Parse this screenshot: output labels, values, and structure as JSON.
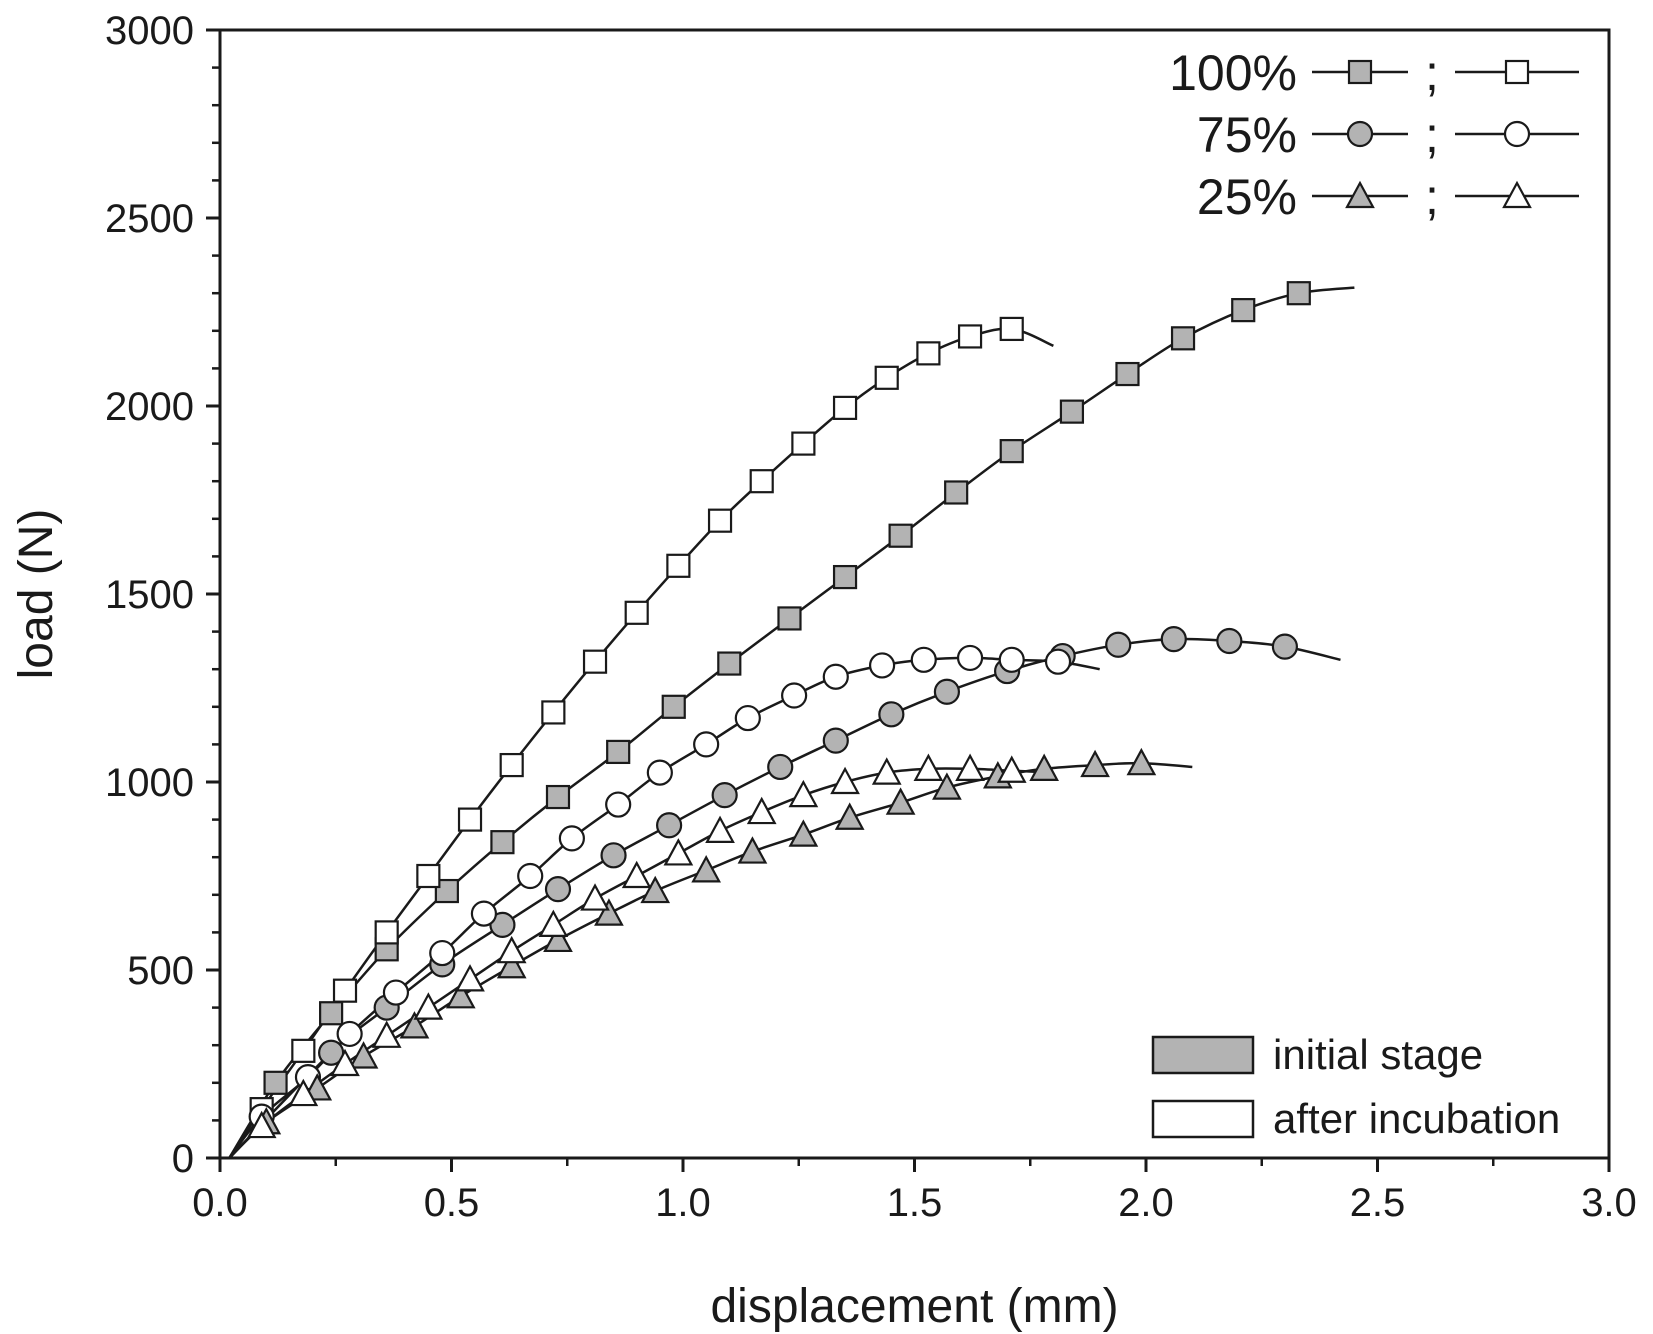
{
  "chart_data": {
    "type": "line",
    "title": "",
    "xlabel": "displacement (mm)",
    "ylabel": "load (N)",
    "xlim": [
      0.0,
      3.0
    ],
    "ylim": [
      0,
      3000
    ],
    "grid": false,
    "xticks": [
      "0.0",
      "0.5",
      "1.0",
      "1.5",
      "2.0",
      "2.5",
      "3.0"
    ],
    "xtick_values": [
      0,
      0.5,
      1.0,
      1.5,
      2.0,
      2.5,
      3.0
    ],
    "yticks": [
      "0",
      "500",
      "1000",
      "1500",
      "2000",
      "2500",
      "3000"
    ],
    "ytick_values": [
      0,
      500,
      1000,
      1500,
      2000,
      2500,
      3000
    ],
    "legend": {
      "position": "top-right",
      "entries": [
        {
          "label": "100%",
          "separator": ";",
          "marker": "square"
        },
        {
          "label": "75%",
          "separator": ";",
          "marker": "circle"
        },
        {
          "label": "25%",
          "separator": ";",
          "marker": "triangle"
        }
      ]
    },
    "fill_legend": {
      "position": "bottom-right",
      "entries": [
        {
          "label": "initial stage",
          "fill": "#b3b3b3"
        },
        {
          "label": "after incubation",
          "fill": "#ffffff"
        }
      ]
    },
    "series": [
      {
        "name": "100% initial stage",
        "marker": "square",
        "fill": "#b3b3b3",
        "x": [
          0.12,
          0.24,
          0.36,
          0.49,
          0.61,
          0.73,
          0.86,
          0.98,
          1.1,
          1.23,
          1.35,
          1.47,
          1.59,
          1.71,
          1.84,
          1.96,
          2.08,
          2.21,
          2.33
        ],
        "y": [
          200,
          385,
          555,
          710,
          840,
          960,
          1080,
          1200,
          1315,
          1435,
          1545,
          1655,
          1770,
          1880,
          1985,
          2085,
          2180,
          2255,
          2300
        ],
        "curve_end": [
          2.45,
          2315
        ]
      },
      {
        "name": "100% after incubation",
        "marker": "square",
        "fill": "#ffffff",
        "x": [
          0.09,
          0.18,
          0.27,
          0.36,
          0.45,
          0.54,
          0.63,
          0.72,
          0.81,
          0.9,
          0.99,
          1.08,
          1.17,
          1.26,
          1.35,
          1.44,
          1.53,
          1.62,
          1.71
        ],
        "y": [
          130,
          285,
          445,
          600,
          750,
          900,
          1045,
          1185,
          1320,
          1450,
          1575,
          1695,
          1800,
          1900,
          1995,
          2075,
          2140,
          2185,
          2205
        ],
        "curve_end": [
          1.8,
          2160
        ]
      },
      {
        "name": "75% initial stage",
        "marker": "circle",
        "fill": "#b3b3b3",
        "x": [
          0.24,
          0.36,
          0.48,
          0.61,
          0.73,
          0.85,
          0.97,
          1.09,
          1.21,
          1.33,
          1.45,
          1.57,
          1.7,
          1.82,
          1.94,
          2.06,
          2.18,
          2.3
        ],
        "y": [
          280,
          400,
          515,
          620,
          715,
          805,
          885,
          965,
          1040,
          1110,
          1180,
          1240,
          1295,
          1335,
          1365,
          1380,
          1375,
          1360
        ],
        "curve_end": [
          2.42,
          1325
        ]
      },
      {
        "name": "75% after incubation",
        "marker": "circle",
        "fill": "#ffffff",
        "x": [
          0.09,
          0.19,
          0.28,
          0.38,
          0.48,
          0.57,
          0.67,
          0.76,
          0.86,
          0.95,
          1.05,
          1.14,
          1.24,
          1.33,
          1.43,
          1.52,
          1.62,
          1.71,
          1.81
        ],
        "y": [
          110,
          215,
          330,
          440,
          545,
          650,
          750,
          850,
          940,
          1025,
          1100,
          1170,
          1230,
          1280,
          1310,
          1325,
          1330,
          1325,
          1320
        ],
        "curve_end": [
          1.9,
          1300
        ]
      },
      {
        "name": "25% initial stage",
        "marker": "triangle",
        "fill": "#b3b3b3",
        "x": [
          0.1,
          0.21,
          0.31,
          0.42,
          0.52,
          0.63,
          0.73,
          0.84,
          0.94,
          1.05,
          1.15,
          1.26,
          1.36,
          1.47,
          1.57,
          1.68,
          1.78,
          1.89,
          1.99
        ],
        "y": [
          95,
          185,
          270,
          350,
          430,
          510,
          580,
          650,
          710,
          765,
          815,
          860,
          905,
          945,
          985,
          1015,
          1035,
          1045,
          1050
        ],
        "curve_end": [
          2.1,
          1040
        ]
      },
      {
        "name": "25% after incubation",
        "marker": "triangle",
        "fill": "#ffffff",
        "x": [
          0.09,
          0.18,
          0.27,
          0.36,
          0.45,
          0.54,
          0.63,
          0.72,
          0.81,
          0.9,
          0.99,
          1.08,
          1.17,
          1.26,
          1.35,
          1.44,
          1.53,
          1.62,
          1.71
        ],
        "y": [
          85,
          170,
          250,
          325,
          400,
          475,
          550,
          620,
          690,
          750,
          810,
          870,
          920,
          965,
          1000,
          1025,
          1035,
          1035,
          1030
        ],
        "curve_end": [
          1.8,
          1025
        ]
      }
    ]
  }
}
